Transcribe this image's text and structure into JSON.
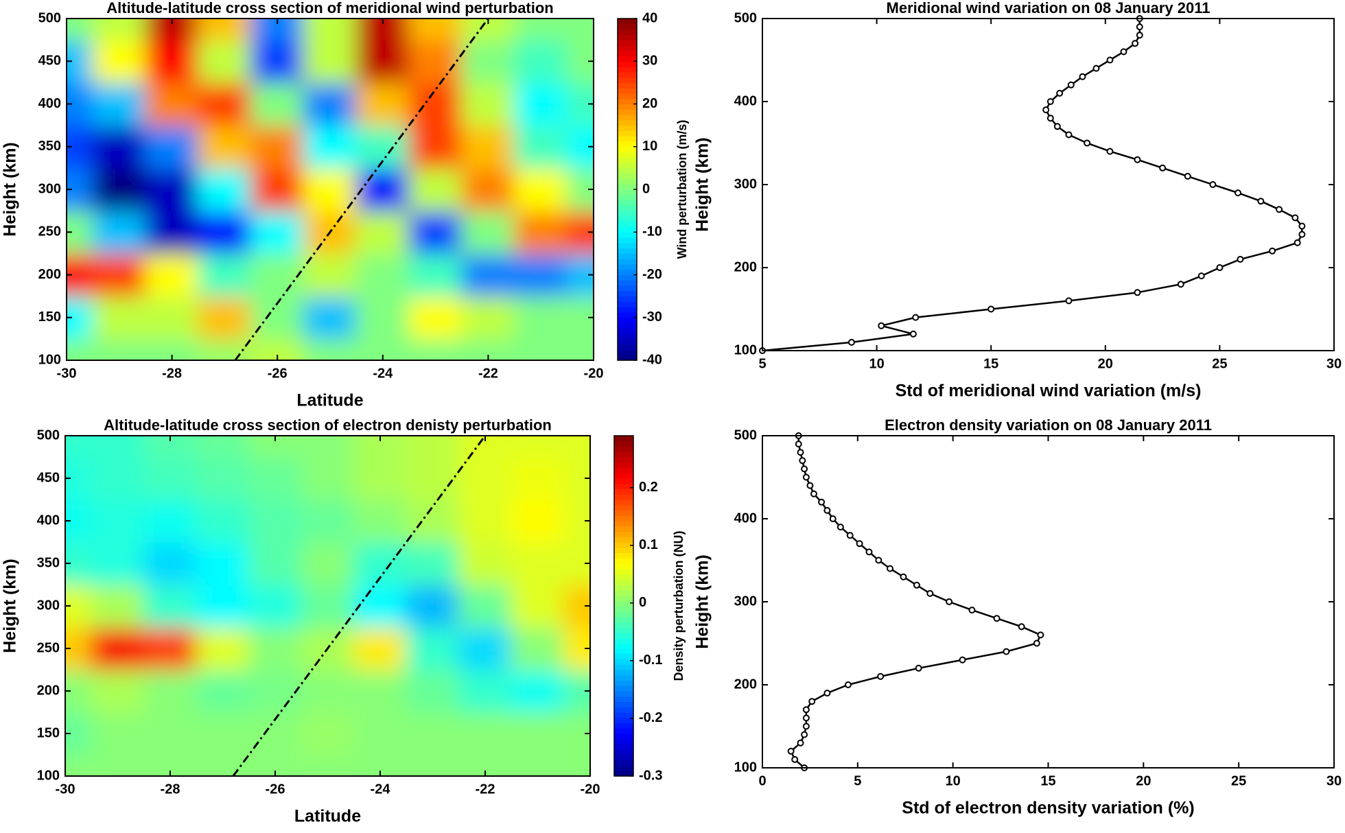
{
  "chart_data": [
    {
      "type": "heatmap",
      "title": "Altitude-latitude cross section of meridional wind perturbation",
      "xlabel": "Latitude",
      "ylabel": "Height (km)",
      "colorbar_label": "Wind perturbation (m/s)",
      "colormap": "jet",
      "xlim": [
        -30,
        -20
      ],
      "ylim": [
        100,
        500
      ],
      "xticks": [
        -30,
        -28,
        -26,
        -24,
        -22,
        -20
      ],
      "yticks": [
        100,
        150,
        200,
        250,
        300,
        350,
        400,
        450,
        500
      ],
      "zlim": [
        -40,
        40
      ],
      "zticks": [
        -40,
        -30,
        -20,
        -10,
        0,
        10,
        20,
        30,
        40
      ],
      "x": [
        -30,
        -29,
        -28,
        -27,
        -26,
        -25,
        -24,
        -23,
        -22,
        -21,
        -20
      ],
      "y": [
        100,
        150,
        200,
        250,
        300,
        350,
        400,
        450,
        500
      ],
      "z": [
        [
          0,
          0,
          0,
          2,
          5,
          0,
          0,
          0,
          0,
          0,
          0
        ],
        [
          -10,
          5,
          5,
          15,
          0,
          -15,
          0,
          10,
          5,
          0,
          0
        ],
        [
          30,
          25,
          10,
          -5,
          0,
          5,
          0,
          -5,
          -20,
          -20,
          -15
        ],
        [
          0,
          -15,
          -35,
          -30,
          -10,
          15,
          5,
          -25,
          0,
          20,
          25
        ],
        [
          -20,
          -40,
          -35,
          -10,
          25,
          10,
          -30,
          5,
          20,
          10,
          0
        ],
        [
          -25,
          -35,
          -20,
          15,
          20,
          -10,
          -5,
          25,
          15,
          -5,
          -10
        ],
        [
          -20,
          -15,
          20,
          25,
          0,
          -20,
          15,
          25,
          5,
          -10,
          -5
        ],
        [
          -15,
          10,
          30,
          5,
          -25,
          5,
          35,
          20,
          0,
          -5,
          0
        ],
        [
          0,
          5,
          35,
          15,
          -20,
          5,
          35,
          15,
          5,
          0,
          0
        ]
      ],
      "reference_line": {
        "x": [
          -26.8,
          -22
        ],
        "y": [
          100,
          500
        ],
        "color": "#000000"
      }
    },
    {
      "type": "line",
      "title": "Meridional wind variation on 08 January 2011",
      "xlabel": "Std of meridional wind variation (m/s)",
      "ylabel": "Height (km)",
      "xlim": [
        5,
        30
      ],
      "ylim": [
        100,
        500
      ],
      "xticks": [
        5,
        10,
        15,
        20,
        25,
        30
      ],
      "yticks": [
        100,
        200,
        300,
        400,
        500
      ],
      "color": "#000000",
      "y": [
        100,
        110,
        120,
        130,
        140,
        150,
        160,
        170,
        180,
        190,
        200,
        210,
        220,
        230,
        240,
        250,
        260,
        270,
        280,
        290,
        300,
        310,
        320,
        330,
        340,
        350,
        360,
        370,
        380,
        390,
        400,
        410,
        420,
        430,
        440,
        450,
        460,
        470,
        480,
        490,
        500
      ],
      "values": [
        5.0,
        8.9,
        11.6,
        10.2,
        11.7,
        15.0,
        18.4,
        21.4,
        23.3,
        24.2,
        25.0,
        25.9,
        27.3,
        28.4,
        28.6,
        28.6,
        28.3,
        27.6,
        26.8,
        25.8,
        24.7,
        23.6,
        22.5,
        21.4,
        20.2,
        19.2,
        18.4,
        17.9,
        17.6,
        17.4,
        17.6,
        18.0,
        18.5,
        19.0,
        19.6,
        20.2,
        20.8,
        21.3,
        21.5,
        21.5,
        21.5
      ]
    },
    {
      "type": "heatmap",
      "title": "Altitude-latitude cross section of electron denisty perturbation",
      "xlabel": "Latitude",
      "ylabel": "Height (km)",
      "colorbar_label": "Density perturbation (NU)",
      "colormap": "jet",
      "xlim": [
        -30,
        -20
      ],
      "ylim": [
        100,
        500
      ],
      "xticks": [
        -30,
        -28,
        -26,
        -24,
        -22,
        -20
      ],
      "yticks": [
        100,
        150,
        200,
        250,
        300,
        350,
        400,
        450,
        500
      ],
      "zlim": [
        -0.3,
        0.29
      ],
      "zticks": [
        -0.3,
        -0.2,
        -0.1,
        0,
        0.1,
        0.2
      ],
      "x": [
        -30,
        -29,
        -28,
        -27,
        -26,
        -25,
        -24,
        -23,
        -22,
        -21,
        -20
      ],
      "y": [
        100,
        150,
        200,
        250,
        300,
        350,
        400,
        450,
        500
      ],
      "z": [
        [
          0,
          0,
          0,
          0,
          0,
          0,
          0,
          0,
          0,
          0,
          0
        ],
        [
          -0.02,
          0,
          0,
          0,
          0,
          0.01,
          0,
          0,
          0,
          0,
          0
        ],
        [
          0,
          0.02,
          0,
          -0.02,
          -0.01,
          0,
          0,
          -0.02,
          -0.05,
          -0.07,
          -0.03
        ],
        [
          0.1,
          0.22,
          0.18,
          0.05,
          0,
          0.02,
          0.08,
          -0.05,
          -0.1,
          0,
          0.08
        ],
        [
          0.05,
          0.02,
          -0.05,
          -0.08,
          -0.06,
          -0.02,
          -0.08,
          -0.12,
          -0.02,
          0.05,
          0.1
        ],
        [
          -0.05,
          -0.06,
          -0.1,
          -0.08,
          -0.03,
          0,
          -0.05,
          -0.04,
          0.04,
          0.05,
          0.05
        ],
        [
          -0.07,
          -0.06,
          -0.07,
          -0.05,
          -0.03,
          -0.02,
          0,
          0.02,
          0.05,
          0.07,
          0.05
        ],
        [
          -0.06,
          -0.05,
          -0.04,
          -0.03,
          -0.02,
          0,
          0.02,
          0.03,
          0.05,
          0.06,
          0.05
        ],
        [
          -0.05,
          -0.05,
          -0.03,
          -0.02,
          0,
          0,
          0.02,
          0.03,
          0.05,
          0.05,
          0.05
        ]
      ],
      "reference_line": {
        "x": [
          -26.8,
          -22
        ],
        "y": [
          100,
          500
        ],
        "color": "#000000"
      }
    },
    {
      "type": "line",
      "title": "Electron density variation on 08 January 2011",
      "xlabel": "Std of electron density variation (%)",
      "ylabel": "Height (km)",
      "xlim": [
        0,
        30
      ],
      "ylim": [
        100,
        500
      ],
      "xticks": [
        0,
        5,
        10,
        15,
        20,
        25,
        30
      ],
      "yticks": [
        100,
        200,
        300,
        400,
        500
      ],
      "color": "#000000",
      "y": [
        100,
        110,
        120,
        130,
        140,
        150,
        160,
        170,
        180,
        190,
        200,
        210,
        220,
        230,
        240,
        250,
        260,
        270,
        280,
        290,
        300,
        310,
        320,
        330,
        340,
        350,
        360,
        370,
        380,
        390,
        400,
        410,
        420,
        430,
        440,
        450,
        460,
        470,
        480,
        490,
        500
      ],
      "values": [
        2.2,
        1.7,
        1.5,
        2.0,
        2.2,
        2.3,
        2.3,
        2.3,
        2.6,
        3.4,
        4.5,
        6.2,
        8.2,
        10.5,
        12.8,
        14.4,
        14.6,
        13.6,
        12.3,
        11.0,
        9.8,
        8.8,
        8.1,
        7.4,
        6.7,
        6.1,
        5.6,
        5.1,
        4.6,
        4.1,
        3.7,
        3.4,
        3.1,
        2.7,
        2.5,
        2.3,
        2.2,
        2.1,
        2.0,
        1.9,
        1.9
      ]
    }
  ]
}
